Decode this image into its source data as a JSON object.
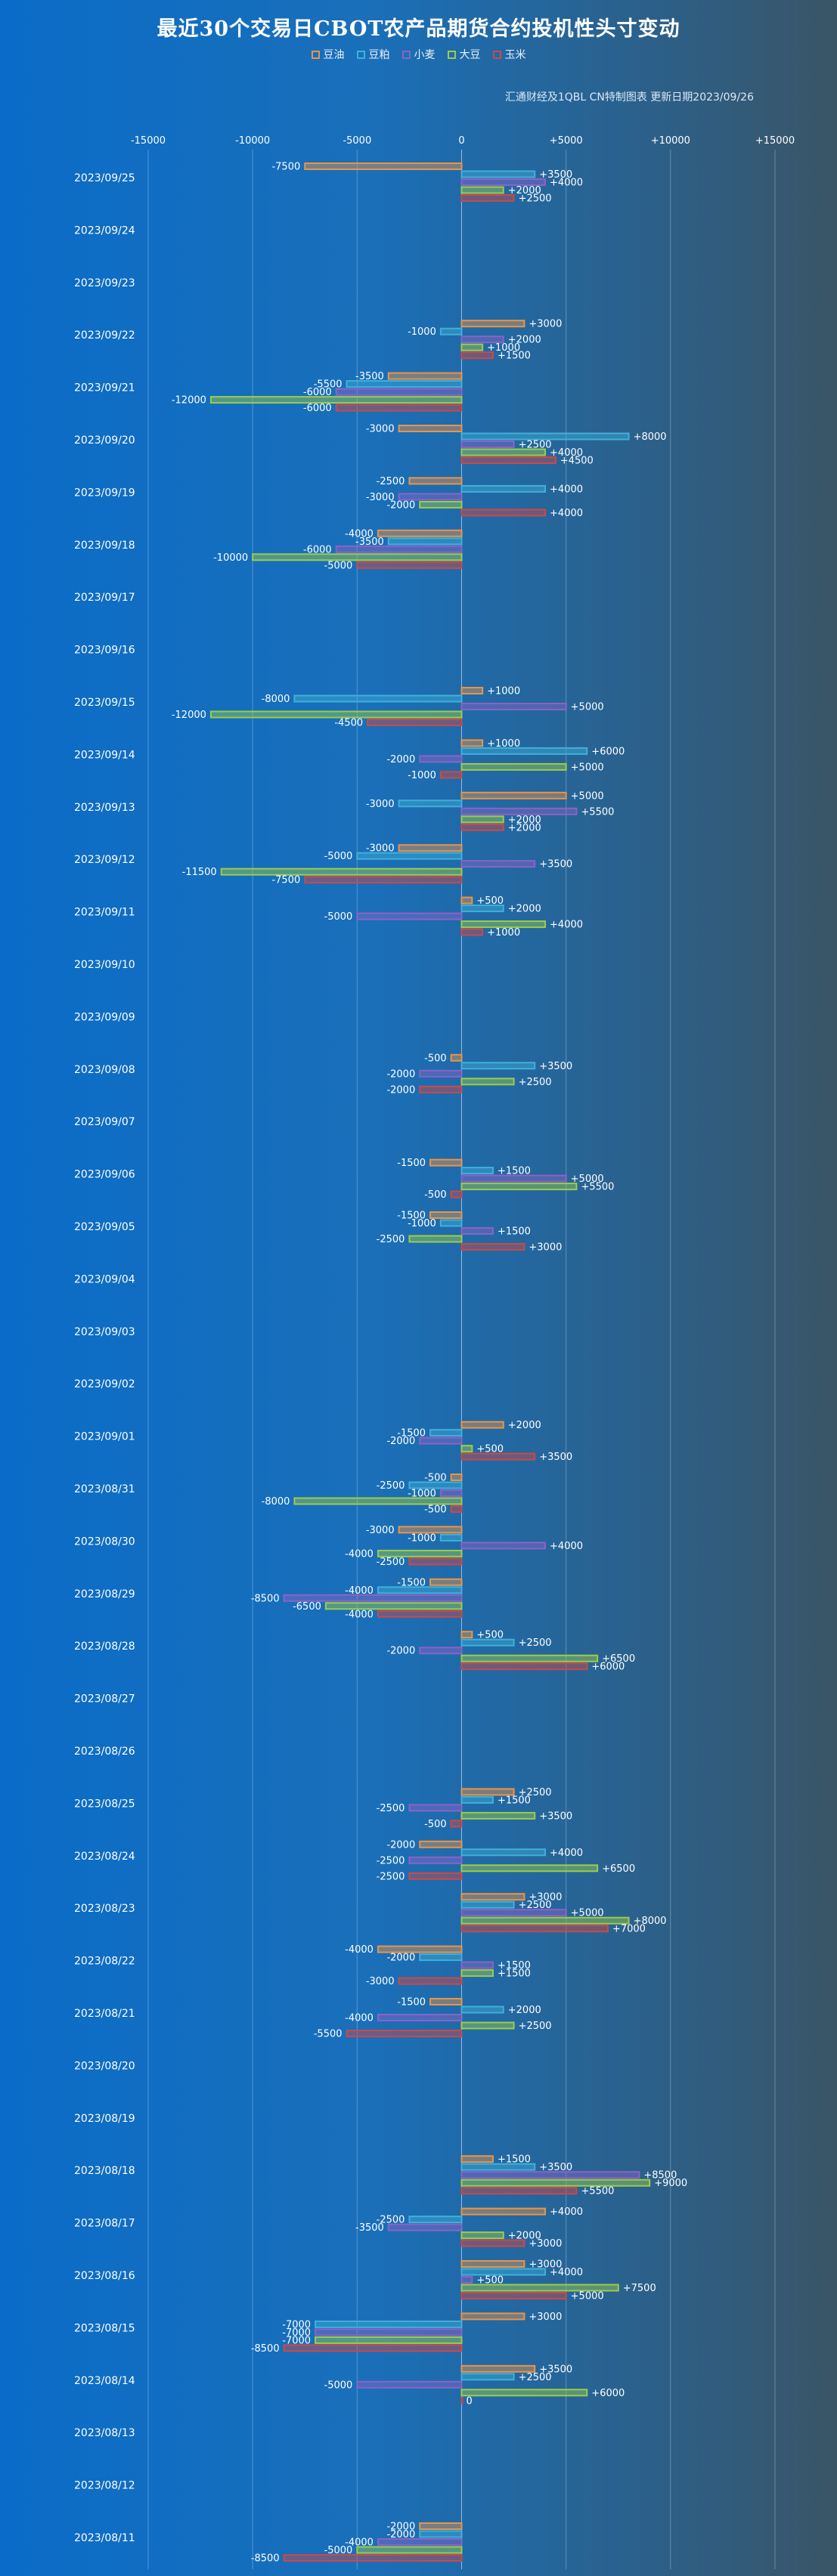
{
  "chart_data": {
    "type": "bar",
    "orientation": "horizontal",
    "title": "最近30个交易日CBOT农产品期货合约投机性头寸变动",
    "source": "汇通财经及1QBL CN特制图表 更新日期2023/09/26",
    "xlim": [
      -15000,
      15000
    ],
    "xticks": [
      -15000,
      -10000,
      -5000,
      0,
      5000,
      10000,
      15000
    ],
    "xtick_labels": [
      "-15000",
      "-10000",
      "-5000",
      "0",
      "+5000",
      "+10000",
      "+15000"
    ],
    "grid": true,
    "legend_position": "top",
    "series": [
      {
        "name": "豆油",
        "color": "#e8944a"
      },
      {
        "name": "豆粕",
        "color": "#3fb0d8"
      },
      {
        "name": "小麦",
        "color": "#8a63c6"
      },
      {
        "name": "大豆",
        "color": "#9ccc4a"
      },
      {
        "name": "玉米",
        "color": "#c94a4a"
      }
    ],
    "categories": [
      "2023/09/25",
      "2023/09/24",
      "2023/09/23",
      "2023/09/22",
      "2023/09/21",
      "2023/09/20",
      "2023/09/19",
      "2023/09/18",
      "2023/09/17",
      "2023/09/16",
      "2023/09/15",
      "2023/09/14",
      "2023/09/13",
      "2023/09/12",
      "2023/09/11",
      "2023/09/10",
      "2023/09/09",
      "2023/09/08",
      "2023/09/07",
      "2023/09/06",
      "2023/09/05",
      "2023/09/04",
      "2023/09/03",
      "2023/09/02",
      "2023/09/01",
      "2023/08/31",
      "2023/08/30",
      "2023/08/29",
      "2023/08/28",
      "2023/08/27",
      "2023/08/26",
      "2023/08/25",
      "2023/08/24",
      "2023/08/23",
      "2023/08/22",
      "2023/08/21",
      "2023/08/20",
      "2023/08/19",
      "2023/08/18",
      "2023/08/17",
      "2023/08/16",
      "2023/08/15",
      "2023/08/14",
      "2023/08/13",
      "2023/08/12",
      "2023/08/11"
    ],
    "values": [
      [
        -7500,
        3500,
        4000,
        2000,
        2500
      ],
      null,
      null,
      [
        3000,
        -1000,
        2000,
        1000,
        1500
      ],
      [
        -3500,
        -5500,
        -6000,
        -12000,
        -6000
      ],
      [
        -3000,
        8000,
        2500,
        4000,
        4500
      ],
      [
        -2500,
        4000,
        -3000,
        -2000,
        4000
      ],
      [
        -4000,
        -3500,
        -6000,
        -10000,
        -5000
      ],
      null,
      null,
      [
        1000,
        -8000,
        5000,
        -12000,
        -4500
      ],
      [
        1000,
        6000,
        -2000,
        5000,
        -1000
      ],
      [
        5000,
        -3000,
        5500,
        2000,
        2000
      ],
      [
        -3000,
        -5000,
        3500,
        -11500,
        -7500
      ],
      [
        500,
        2000,
        -5000,
        4000,
        1000
      ],
      null,
      null,
      [
        -500,
        3500,
        -2000,
        2500,
        -2000
      ],
      null,
      [
        -1500,
        1500,
        5000,
        5500,
        -500
      ],
      [
        -1500,
        -1000,
        1500,
        -2500,
        3000
      ],
      null,
      null,
      null,
      [
        2000,
        -1500,
        -2000,
        500,
        3500
      ],
      [
        -500,
        -2500,
        -1000,
        -8000,
        -500
      ],
      [
        -3000,
        -1000,
        4000,
        -4000,
        -2500
      ],
      [
        -1500,
        -4000,
        -8500,
        -6500,
        -4000
      ],
      [
        500,
        2500,
        -2000,
        6500,
        6000
      ],
      null,
      null,
      [
        2500,
        1500,
        -2500,
        3500,
        -500
      ],
      [
        -2000,
        4000,
        -2500,
        6500,
        -2500
      ],
      [
        3000,
        2500,
        5000,
        8000,
        7000
      ],
      [
        -4000,
        -2000,
        1500,
        1500,
        -3000
      ],
      [
        -1500,
        2000,
        -4000,
        2500,
        -5500
      ],
      null,
      null,
      [
        1500,
        3500,
        8500,
        9000,
        5500
      ],
      [
        4000,
        -2500,
        -3500,
        2000,
        3000
      ],
      [
        3000,
        4000,
        500,
        7500,
        5000
      ],
      [
        3000,
        -7000,
        -7000,
        -7000,
        -8500
      ],
      [
        3500,
        2500,
        -5000,
        6000,
        0
      ],
      null,
      null,
      [
        -2000,
        -2000,
        -4000,
        -5000,
        -8500
      ]
    ]
  }
}
